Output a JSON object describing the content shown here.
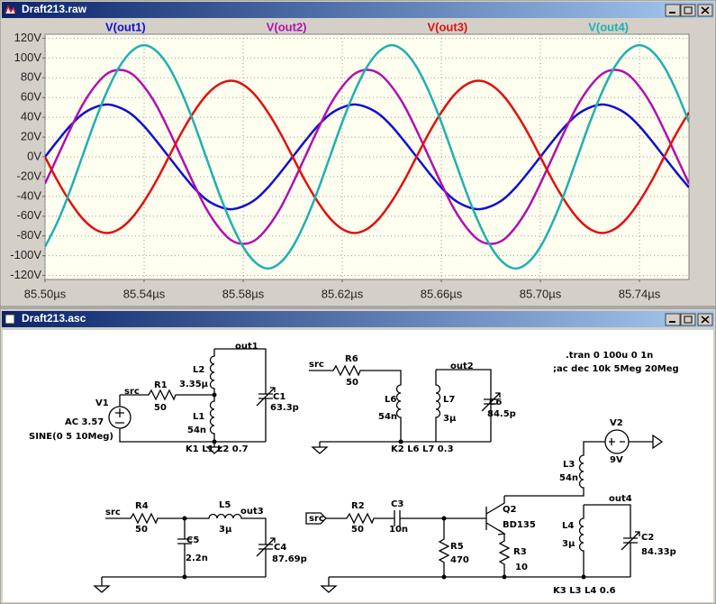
{
  "windows": [
    {
      "title": "Draft213.raw"
    },
    {
      "title": "Draft213.asc"
    }
  ],
  "chart_data": {
    "type": "line",
    "x": [
      85.5,
      85.505,
      85.51,
      85.515,
      85.52,
      85.525,
      85.53,
      85.535,
      85.54,
      85.545,
      85.55,
      85.555,
      85.56,
      85.565,
      85.57,
      85.575,
      85.58,
      85.585,
      85.59,
      85.595,
      85.6,
      85.605,
      85.61,
      85.615,
      85.62,
      85.625,
      85.63,
      85.635,
      85.64,
      85.645,
      85.65,
      85.655,
      85.66,
      85.665,
      85.67,
      85.675,
      85.68,
      85.685,
      85.69,
      85.695,
      85.7,
      85.705,
      85.71,
      85.715,
      85.72,
      85.725,
      85.73,
      85.735,
      85.74,
      85.745,
      85.75,
      85.755,
      85.76
    ],
    "xlim": [
      85.5,
      85.76
    ],
    "ylim": [
      -124,
      124
    ],
    "xticks": [
      {
        "value": 85.5,
        "label": "85.50µs"
      },
      {
        "value": 85.54,
        "label": "85.54µs"
      },
      {
        "value": 85.58,
        "label": "85.58µs"
      },
      {
        "value": 85.62,
        "label": "85.62µs"
      },
      {
        "value": 85.66,
        "label": "85.66µs"
      },
      {
        "value": 85.7,
        "label": "85.70µs"
      },
      {
        "value": 85.74,
        "label": "85.74µs"
      }
    ],
    "yticks": [
      {
        "value": 120,
        "label": "120V"
      },
      {
        "value": 100,
        "label": "100V"
      },
      {
        "value": 80,
        "label": "80V"
      },
      {
        "value": 60,
        "label": "60V"
      },
      {
        "value": 40,
        "label": "40V"
      },
      {
        "value": 20,
        "label": "20V"
      },
      {
        "value": 0,
        "label": "0V"
      },
      {
        "value": -20,
        "label": "-20V"
      },
      {
        "value": -40,
        "label": "-40V"
      },
      {
        "value": -60,
        "label": "-60V"
      },
      {
        "value": -80,
        "label": "-80V"
      },
      {
        "value": -100,
        "label": "-100V"
      },
      {
        "value": -120,
        "label": "-120V"
      }
    ],
    "grid": true,
    "series": [
      {
        "name": "V(out1)",
        "color": "#1010d0",
        "values": [
          0,
          16,
          31,
          43,
          50,
          53,
          50,
          43,
          31,
          16,
          0,
          -16,
          -31,
          -43,
          -50,
          -53,
          -50,
          -43,
          -31,
          -16,
          0,
          16,
          31,
          43,
          50,
          53,
          50,
          43,
          31,
          16,
          0,
          -16,
          -31,
          -43,
          -50,
          -53,
          -50,
          -43,
          -31,
          -16,
          0,
          16,
          31,
          43,
          50,
          53,
          50,
          43,
          31,
          16,
          0,
          -16,
          -31
        ]
      },
      {
        "name": "V(out2)",
        "color": "#b010b0",
        "values": [
          -27,
          0,
          27,
          52,
          71,
          84,
          88,
          84,
          71,
          52,
          27,
          0,
          -27,
          -52,
          -71,
          -84,
          -88,
          -84,
          -71,
          -52,
          -27,
          0,
          27,
          52,
          71,
          84,
          88,
          84,
          71,
          52,
          27,
          0,
          -27,
          -52,
          -71,
          -84,
          -88,
          -84,
          -71,
          -52,
          -27,
          0,
          27,
          52,
          71,
          84,
          88,
          84,
          71,
          52,
          27,
          0,
          -27
        ]
      },
      {
        "name": "V(out3)",
        "color": "#e01010",
        "values": [
          0,
          -24,
          -45,
          -62,
          -73,
          -77,
          -73,
          -62,
          -45,
          -24,
          0,
          24,
          45,
          62,
          73,
          77,
          73,
          62,
          45,
          24,
          0,
          -24,
          -45,
          -62,
          -73,
          -77,
          -73,
          -62,
          -45,
          -24,
          0,
          24,
          45,
          62,
          73,
          77,
          73,
          62,
          45,
          24,
          0,
          -24,
          -45,
          -62,
          -73,
          -77,
          -73,
          -62,
          -45,
          -24,
          0,
          24,
          45
        ]
      },
      {
        "name": "V(out4)",
        "color": "#20b0b0",
        "values": [
          -91,
          -66,
          -35,
          0,
          35,
          66,
          91,
          107,
          113,
          107,
          91,
          66,
          35,
          0,
          -35,
          -66,
          -91,
          -107,
          -113,
          -107,
          -91,
          -66,
          -35,
          0,
          35,
          66,
          91,
          107,
          113,
          107,
          91,
          66,
          35,
          0,
          -35,
          -66,
          -91,
          -107,
          -113,
          -107,
          -91,
          -66,
          -35,
          0,
          35,
          66,
          91,
          107,
          113,
          107,
          91,
          66,
          35
        ]
      }
    ]
  },
  "schematic": {
    "labels": [
      "out1",
      "L2",
      "3.35µ",
      "src",
      "R1",
      "50",
      "C1",
      "63.3p",
      "V1",
      "AC 3.57",
      "SINE(0 5 10Meg)",
      "L1",
      "54n",
      "K1 L1 L2 0.7",
      "R6",
      "src",
      "50",
      "out2",
      "L6",
      "54n",
      "L7",
      "3µ",
      "C6",
      "84.5p",
      "K2 L6 L7 0.3",
      ".tran 0 100u 0 1n",
      ";ac dec 10k 5Meg 20Meg",
      "V2",
      "9V",
      "L3",
      "54n",
      "Q2",
      "BD135",
      "out4",
      "R4",
      "src",
      "50",
      "L5",
      "3µ",
      "out3",
      "C5",
      "2.2n",
      "C4",
      "87.69p",
      "src",
      "R2",
      "50",
      "C3",
      "10n",
      "R5",
      "470",
      "R3",
      "10",
      "L4",
      "3µ",
      "C2",
      "84.33p",
      "K3 L3 L4 0.6"
    ]
  }
}
